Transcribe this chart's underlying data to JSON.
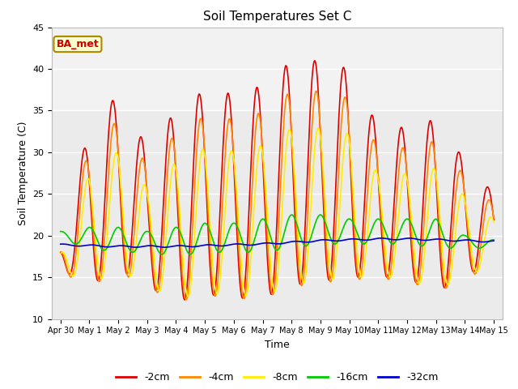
{
  "title": "Soil Temperatures Set C",
  "xlabel": "Time",
  "ylabel": "Soil Temperature (C)",
  "ylim": [
    10,
    45
  ],
  "annotation": "BA_met",
  "annotation_color": "#cc0000",
  "annotation_bg": "#ffffcc",
  "annotation_border": "#aa8800",
  "background_color": "#ffffff",
  "plot_bg_color": "#ebebeb",
  "grid_color": "#ffffff",
  "series": [
    {
      "label": "-2cm",
      "color": "#dd0000",
      "lw": 1.2
    },
    {
      "label": "-4cm",
      "color": "#ff8800",
      "lw": 1.2
    },
    {
      "label": "-8cm",
      "color": "#ffee00",
      "lw": 1.2
    },
    {
      "label": "-16cm",
      "color": "#00cc00",
      "lw": 1.2
    },
    {
      "label": "-32cm",
      "color": "#0000cc",
      "lw": 1.2
    }
  ],
  "xtick_labels": [
    "Apr 30",
    "May 1",
    "May 2",
    "May 3",
    "May 4",
    "May 5",
    "May 6",
    "May 7",
    "May 8",
    "May 9",
    "May 10",
    "May 11",
    "May 12",
    "May 13",
    "May 14",
    "May 15"
  ],
  "xtick_positions": [
    0,
    1,
    2,
    3,
    4,
    5,
    6,
    7,
    8,
    9,
    10,
    11,
    12,
    13,
    14,
    15
  ],
  "ytick_positions": [
    10,
    15,
    20,
    25,
    30,
    35,
    40,
    45
  ],
  "peaks_2": [
    19,
    33,
    37,
    30.5,
    35,
    37.5,
    37,
    38,
    41,
    41,
    40,
    33,
    33,
    34,
    29,
    25
  ],
  "troughs_2": [
    16,
    14,
    16,
    14,
    12,
    13,
    12.5,
    12.5,
    14,
    14.5,
    15,
    15,
    15,
    13,
    15.5,
    16
  ],
  "peaks_16": [
    20.5,
    21,
    21,
    20.5,
    21,
    21.5,
    21.5,
    22,
    22.5,
    22.5,
    22,
    22,
    22,
    22,
    20,
    19.5
  ],
  "troughs_16": [
    19.5,
    18.5,
    18,
    18,
    17.5,
    18,
    18,
    18,
    18.5,
    19,
    19,
    19,
    19,
    18.5,
    18.5,
    18.5
  ],
  "peaks_32": [
    19.0,
    18.9,
    18.8,
    18.8,
    18.8,
    18.9,
    19.0,
    19.1,
    19.3,
    19.5,
    19.6,
    19.7,
    19.7,
    19.6,
    19.5,
    19.4
  ],
  "troughs_32": [
    18.8,
    18.7,
    18.6,
    18.6,
    18.6,
    18.7,
    18.8,
    18.9,
    19.1,
    19.3,
    19.4,
    19.5,
    19.5,
    19.4,
    19.3,
    19.2
  ]
}
